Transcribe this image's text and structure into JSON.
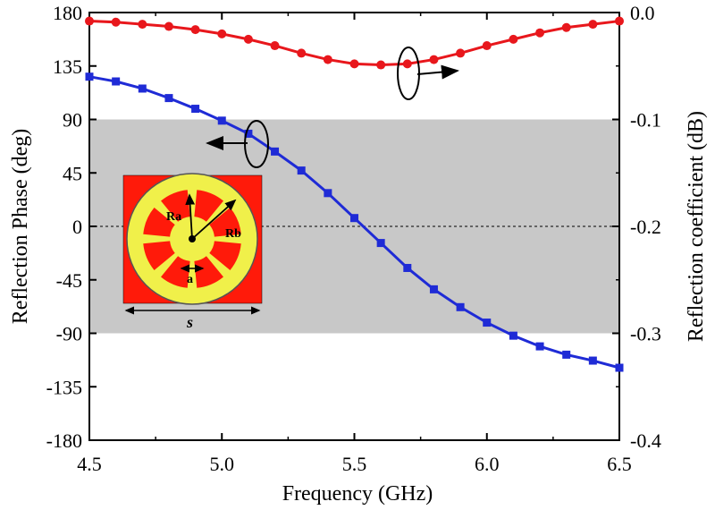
{
  "chart_data": {
    "type": "line",
    "xlabel": "Frequency (GHz)",
    "ylabel_left": "Reflection Phase (deg)",
    "ylabel_right": "Reflection coefficient (dB)",
    "xlim": [
      4.5,
      6.5
    ],
    "ylim_left": [
      -180,
      180
    ],
    "ylim_right": [
      -0.4,
      0.0
    ],
    "x_ticks": [
      4.5,
      5.0,
      5.5,
      6.0,
      6.5
    ],
    "x_tick_labels": [
      "4.5",
      "5.0",
      "5.5",
      "6.0",
      "6.5"
    ],
    "y_left_ticks": [
      180,
      135,
      90,
      45,
      0,
      -45,
      -90,
      -135,
      -180
    ],
    "y_left_tick_labels": [
      "180",
      "135",
      "90",
      "45",
      "0",
      "-45",
      "-90",
      "-135",
      "-180"
    ],
    "y_right_ticks": [
      0.0,
      -0.1,
      -0.2,
      -0.3,
      -0.4
    ],
    "y_right_tick_labels": [
      "0.0",
      "-0.1",
      "-0.2",
      "-0.3",
      "-0.4"
    ],
    "shaded_band": [
      -90,
      90
    ],
    "reference_line": 0,
    "series": [
      {
        "name": "Reflection Phase",
        "axis": "left",
        "color": "#1f2bd6",
        "marker": "square",
        "x": [
          4.5,
          4.6,
          4.7,
          4.8,
          4.9,
          5.0,
          5.1,
          5.2,
          5.3,
          5.4,
          5.5,
          5.6,
          5.7,
          5.8,
          5.9,
          6.0,
          6.1,
          6.2,
          6.3,
          6.4,
          6.5
        ],
        "values": [
          126,
          122,
          116,
          108,
          99,
          89,
          78,
          63,
          47,
          28,
          7,
          -14,
          -35,
          -53,
          -68,
          -81,
          -92,
          -101,
          -108,
          -113,
          -119
        ]
      },
      {
        "name": "Reflection coefficient",
        "axis": "right",
        "color": "#e8171c",
        "marker": "circle",
        "x": [
          4.5,
          4.6,
          4.7,
          4.8,
          4.9,
          5.0,
          5.1,
          5.2,
          5.3,
          5.4,
          5.5,
          5.6,
          5.7,
          5.8,
          5.9,
          6.0,
          6.1,
          6.2,
          6.3,
          6.4,
          6.5
        ],
        "values": [
          -0.008,
          -0.009,
          -0.011,
          -0.013,
          -0.016,
          -0.02,
          -0.025,
          -0.031,
          -0.038,
          -0.044,
          -0.048,
          -0.049,
          -0.048,
          -0.044,
          -0.038,
          -0.031,
          -0.025,
          -0.019,
          -0.014,
          -0.011,
          -0.008
        ]
      }
    ],
    "annotations": {
      "phase_arrow": "left",
      "coefficient_arrow": "right"
    }
  },
  "inset": {
    "labels": {
      "ra": "Ra",
      "rb": "Rb",
      "a": "a",
      "s": "s"
    },
    "colors": {
      "background": "#ff1a0a",
      "ring": "#f0f04a",
      "outline": "#555555"
    }
  }
}
